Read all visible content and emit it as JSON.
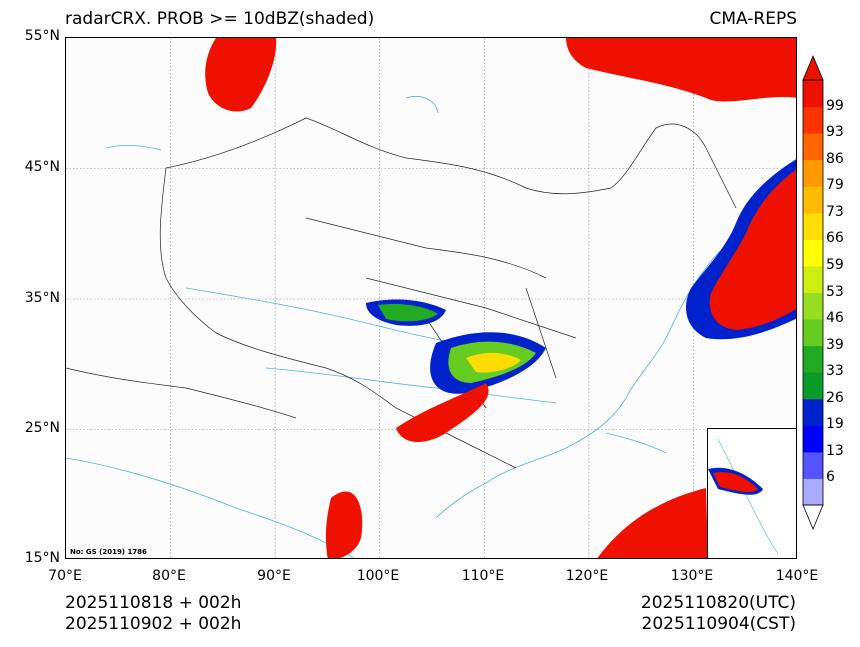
{
  "title_left": "radarCRX. PROB >= 10dBZ(shaded)",
  "title_right": "CMA-REPS",
  "lat_labels": [
    "55°N",
    "45°N",
    "35°N",
    "25°N",
    "15°N"
  ],
  "lon_labels": [
    "70°E",
    "80°E",
    "90°E",
    "100°E",
    "110°E",
    "120°E",
    "130°E",
    "140°E"
  ],
  "map_extent": {
    "lon_min": 70,
    "lon_max": 140,
    "lat_min": 15,
    "lat_max": 55
  },
  "credit": "No: GS (2019) 1786",
  "init_utc": "2025110818  +  002h",
  "init_cst": "2025110902  +  002h",
  "valid_utc": "2025110820(UTC)",
  "valid_cst": "2025110904(CST)",
  "colorbar": {
    "labels": [
      "6",
      "13",
      "19",
      "26",
      "33",
      "39",
      "46",
      "53",
      "59",
      "66",
      "73",
      "79",
      "86",
      "93",
      "99"
    ],
    "colors": [
      "#aaaaff",
      "#5555ff",
      "#0000ff",
      "#0022cc",
      "#0a9a2a",
      "#22aa22",
      "#66cc22",
      "#99dd22",
      "#ccee11",
      "#ffff00",
      "#ffdd00",
      "#ffbb00",
      "#ff9900",
      "#ff6600",
      "#ff3300",
      "#ee1100"
    ]
  },
  "colors": {
    "ocean_line": "#4ab4d8",
    "border_line": "#222222",
    "grid_line": "#888888"
  }
}
